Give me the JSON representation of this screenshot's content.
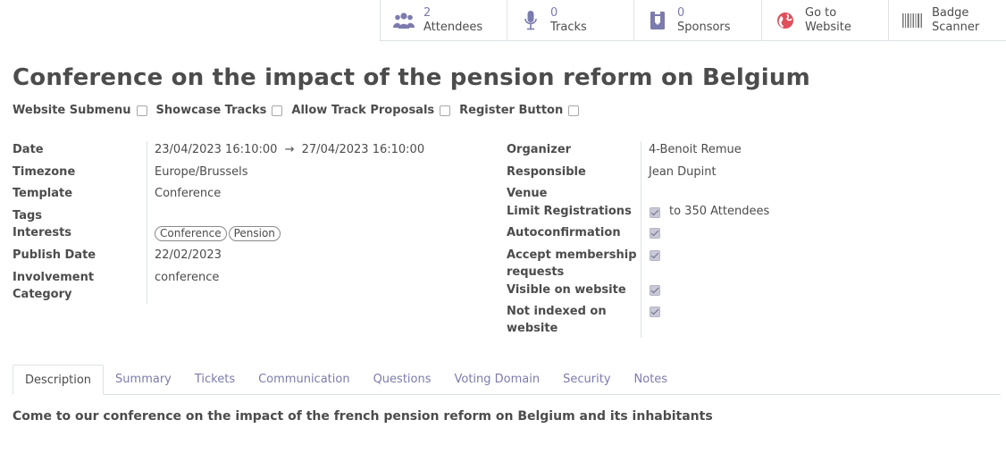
{
  "stat_buttons": [
    {
      "num": "2",
      "label": "Attendees",
      "icon": "users-icon"
    },
    {
      "num": "0",
      "label": "Tracks",
      "icon": "microphone-icon"
    },
    {
      "num": "0",
      "label": "Sponsors",
      "icon": "badge-icon"
    },
    {
      "line1": "Go to",
      "line2": "Website",
      "icon": "globe-icon"
    },
    {
      "line1": "Badge",
      "line2": "Scanner",
      "icon": "barcode-icon"
    }
  ],
  "title": "Conference on the impact of the pension reform on Belgium",
  "options": [
    {
      "label": "Website Submenu",
      "checked": false
    },
    {
      "label": "Showcase Tracks",
      "checked": false
    },
    {
      "label": "Allow Track Proposals",
      "checked": false
    },
    {
      "label": "Register Button",
      "checked": false
    }
  ],
  "left": {
    "date_label": "Date",
    "date_start": "23/04/2023 16:10:00",
    "date_arrow": "→",
    "date_end": "27/04/2023 16:10:00",
    "timezone_label": "Timezone",
    "timezone": "Europe/Brussels",
    "template_label": "Template",
    "template": "Conference",
    "tags_label": "Tags",
    "interests_label": "Interests",
    "interests": [
      "Conference",
      "Pension"
    ],
    "publish_label": "Publish Date",
    "publish_date": "22/02/2023",
    "involvement_label_1": "Involvement",
    "involvement_label_2": "Category",
    "involvement": "conference"
  },
  "right": {
    "organizer_label": "Organizer",
    "organizer": "4-Benoit Remue",
    "responsible_label": "Responsible",
    "responsible": "Jean Dupint",
    "venue_label": "Venue",
    "limit_label": "Limit Registrations",
    "limit_value": "to 350 Attendees",
    "autoconf_label": "Autoconfirmation",
    "accept_label_1": "Accept membership",
    "accept_label_2": "requests",
    "visible_label": "Visible on website",
    "notindexed_label_1": "Not indexed on",
    "notindexed_label_2": "website"
  },
  "tabs": [
    "Description",
    "Summary",
    "Tickets",
    "Communication",
    "Questions",
    "Voting Domain",
    "Security",
    "Notes"
  ],
  "active_tab": "Description",
  "description": "Come to our conference on the impact of the french pension reform on Belgium and its inhabitants",
  "colors": {
    "accent": "#7c7bad",
    "text": "#4c4c4c",
    "globe": "#e0505c"
  }
}
